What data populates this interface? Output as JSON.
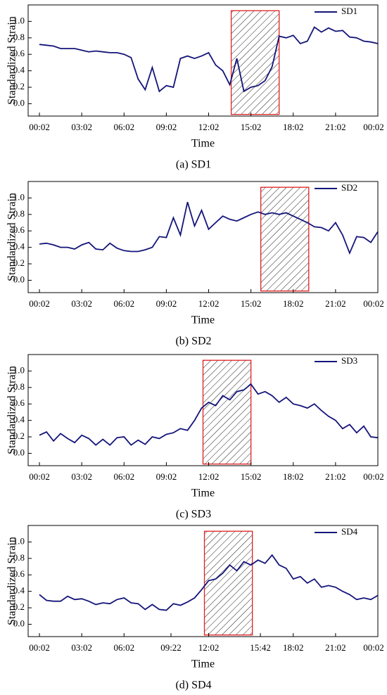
{
  "chart_data": [
    {
      "type": "line",
      "xlabel": "Time",
      "ylabel": "Standardized Strain",
      "caption": "(a) SD1",
      "legend": "upper right",
      "xlim": [
        -0.8,
        24
      ],
      "ylim": [
        -0.15,
        1.2
      ],
      "xticks": [
        {
          "value": 0,
          "label": "00:02"
        },
        {
          "value": 3,
          "label": "03:02"
        },
        {
          "value": 6,
          "label": "06:02"
        },
        {
          "value": 9,
          "label": "09:02"
        },
        {
          "value": 12,
          "label": "12:02"
        },
        {
          "value": 15,
          "label": "15:02"
        },
        {
          "value": 18,
          "label": "18:02"
        },
        {
          "value": 21,
          "label": "21:02"
        },
        {
          "value": 24,
          "label": "00:02"
        }
      ],
      "yticks": [
        {
          "value": 0,
          "label": "0.0"
        },
        0.2,
        0.4,
        0.6,
        0.8,
        {
          "value": 1,
          "label": "1.0"
        }
      ],
      "highlight": {
        "x": [
          13.6,
          17.0
        ],
        "y": [
          -0.13,
          1.13
        ],
        "color": "#e02020"
      },
      "x": [
        0,
        0.5,
        1,
        1.5,
        2,
        2.5,
        3,
        3.5,
        4,
        4.5,
        5,
        5.5,
        6,
        6.5,
        7,
        7.5,
        8,
        8.5,
        9,
        9.5,
        10,
        10.5,
        11,
        11.5,
        12,
        12.5,
        13,
        13.5,
        14,
        14.5,
        15,
        15.5,
        16,
        16.5,
        17,
        17.5,
        18,
        18.5,
        19,
        19.5,
        20,
        20.5,
        21,
        21.5,
        22,
        22.5,
        23,
        23.5,
        24
      ],
      "series": [
        {
          "name": "SD1",
          "color": "#14147a",
          "values": [
            0.72,
            0.71,
            0.7,
            0.67,
            0.67,
            0.67,
            0.65,
            0.63,
            0.64,
            0.63,
            0.62,
            0.62,
            0.6,
            0.56,
            0.3,
            0.17,
            0.44,
            0.15,
            0.22,
            0.2,
            0.55,
            0.58,
            0.55,
            0.58,
            0.62,
            0.47,
            0.4,
            0.23,
            0.55,
            0.15,
            0.2,
            0.22,
            0.28,
            0.45,
            0.82,
            0.8,
            0.83,
            0.73,
            0.76,
            0.93,
            0.87,
            0.92,
            0.88,
            0.89,
            0.81,
            0.8,
            0.76,
            0.75,
            0.73
          ]
        }
      ]
    },
    {
      "type": "line",
      "xlabel": "Time",
      "ylabel": "Standardized Strain",
      "caption": "(b) SD2",
      "legend": "upper right",
      "xlim": [
        -0.8,
        24
      ],
      "ylim": [
        -0.15,
        1.2
      ],
      "xticks": [
        {
          "value": 0,
          "label": "00:02"
        },
        {
          "value": 3,
          "label": "03:02"
        },
        {
          "value": 6,
          "label": "06:02"
        },
        {
          "value": 9,
          "label": "09:02"
        },
        {
          "value": 12,
          "label": "12:02"
        },
        {
          "value": 15,
          "label": "15:02"
        },
        {
          "value": 18,
          "label": "18:02"
        },
        {
          "value": 21,
          "label": "21:02"
        },
        {
          "value": 24,
          "label": "00:02"
        }
      ],
      "yticks": [
        {
          "value": 0,
          "label": "0.0"
        },
        0.2,
        0.4,
        0.6,
        0.8,
        {
          "value": 1,
          "label": "1.0"
        }
      ],
      "highlight": {
        "x": [
          15.7,
          19.1
        ],
        "y": [
          -0.13,
          1.13
        ],
        "color": "#e02020"
      },
      "x": [
        0,
        0.5,
        1,
        1.5,
        2,
        2.5,
        3,
        3.5,
        4,
        4.5,
        5,
        5.5,
        6,
        6.5,
        7,
        7.5,
        8,
        8.5,
        9,
        9.5,
        10,
        10.5,
        11,
        11.5,
        12,
        12.5,
        13,
        13.5,
        14,
        14.5,
        15,
        15.5,
        16,
        16.5,
        17,
        17.5,
        18,
        18.5,
        19,
        19.5,
        20,
        20.5,
        21,
        21.5,
        22,
        22.5,
        23,
        23.5,
        24
      ],
      "series": [
        {
          "name": "SD2",
          "color": "#14147a",
          "values": [
            0.44,
            0.45,
            0.43,
            0.4,
            0.4,
            0.38,
            0.43,
            0.46,
            0.38,
            0.37,
            0.45,
            0.39,
            0.36,
            0.35,
            0.35,
            0.37,
            0.4,
            0.53,
            0.52,
            0.76,
            0.55,
            0.95,
            0.66,
            0.85,
            0.62,
            0.7,
            0.78,
            0.74,
            0.72,
            0.76,
            0.8,
            0.83,
            0.8,
            0.82,
            0.8,
            0.82,
            0.78,
            0.74,
            0.7,
            0.65,
            0.64,
            0.6,
            0.7,
            0.55,
            0.33,
            0.53,
            0.52,
            0.46,
            0.59
          ]
        }
      ]
    },
    {
      "type": "line",
      "xlabel": "Time",
      "ylabel": "Standardized Strain",
      "caption": "(c) SD3",
      "legend": "upper right",
      "xlim": [
        -0.8,
        24
      ],
      "ylim": [
        -0.15,
        1.2
      ],
      "xticks": [
        {
          "value": 0,
          "label": "00:02"
        },
        {
          "value": 3,
          "label": "03:02"
        },
        {
          "value": 6,
          "label": "06:02"
        },
        {
          "value": 9,
          "label": "09:02"
        },
        {
          "value": 12,
          "label": "12:02"
        },
        {
          "value": 15,
          "label": "15:02"
        },
        {
          "value": 18,
          "label": "18:02"
        },
        {
          "value": 21,
          "label": "21:02"
        },
        {
          "value": 24,
          "label": "00:02"
        }
      ],
      "yticks": [
        {
          "value": 0,
          "label": "0.0"
        },
        0.2,
        0.4,
        0.6,
        0.8,
        {
          "value": 1,
          "label": "1.0"
        }
      ],
      "highlight": {
        "x": [
          11.6,
          15.0
        ],
        "y": [
          -0.13,
          1.13
        ],
        "color": "#e02020"
      },
      "x": [
        0,
        0.5,
        1,
        1.5,
        2,
        2.5,
        3,
        3.5,
        4,
        4.5,
        5,
        5.5,
        6,
        6.5,
        7,
        7.5,
        8,
        8.5,
        9,
        9.5,
        10,
        10.5,
        11,
        11.5,
        12,
        12.5,
        13,
        13.5,
        14,
        14.5,
        15,
        15.5,
        16,
        16.5,
        17,
        17.5,
        18,
        18.5,
        19,
        19.5,
        20,
        20.5,
        21,
        21.5,
        22,
        22.5,
        23,
        23.5,
        24
      ],
      "series": [
        {
          "name": "SD3",
          "color": "#14147a",
          "values": [
            0.22,
            0.26,
            0.15,
            0.24,
            0.18,
            0.13,
            0.22,
            0.18,
            0.1,
            0.17,
            0.1,
            0.19,
            0.2,
            0.1,
            0.16,
            0.11,
            0.2,
            0.18,
            0.23,
            0.25,
            0.3,
            0.28,
            0.4,
            0.55,
            0.62,
            0.58,
            0.7,
            0.65,
            0.75,
            0.77,
            0.84,
            0.72,
            0.75,
            0.7,
            0.62,
            0.68,
            0.6,
            0.58,
            0.55,
            0.6,
            0.52,
            0.45,
            0.4,
            0.3,
            0.35,
            0.25,
            0.33,
            0.2,
            0.19
          ]
        }
      ]
    },
    {
      "type": "line",
      "xlabel": "Time",
      "ylabel": "Standardized Strain",
      "caption": "(d) SD4",
      "legend": "upper right",
      "xlim": [
        -0.8,
        24
      ],
      "ylim": [
        -0.15,
        1.2
      ],
      "xticks": [
        {
          "value": 0,
          "label": "00:02"
        },
        {
          "value": 3,
          "label": "03:02"
        },
        {
          "value": 6,
          "label": "06:02"
        },
        {
          "value": 9.33,
          "label": "09:22"
        },
        {
          "value": 12,
          "label": "12:02"
        },
        {
          "value": 15.67,
          "label": "15:42"
        },
        {
          "value": 18,
          "label": "18:02"
        },
        {
          "value": 21,
          "label": "21:02"
        },
        {
          "value": 24,
          "label": "00:02"
        }
      ],
      "yticks": [
        {
          "value": 0,
          "label": "0.0"
        },
        0.2,
        0.4,
        0.6,
        0.8,
        {
          "value": 1,
          "label": "1.0"
        }
      ],
      "highlight": {
        "x": [
          11.7,
          15.1
        ],
        "y": [
          -0.13,
          1.13
        ],
        "color": "#e02020"
      },
      "x": [
        0,
        0.5,
        1,
        1.5,
        2,
        2.5,
        3,
        3.5,
        4,
        4.5,
        5,
        5.5,
        6,
        6.5,
        7,
        7.5,
        8,
        8.5,
        9,
        9.5,
        10,
        10.5,
        11,
        11.5,
        12,
        12.5,
        13,
        13.5,
        14,
        14.5,
        15,
        15.5,
        16,
        16.5,
        17,
        17.5,
        18,
        18.5,
        19,
        19.5,
        20,
        20.5,
        21,
        21.5,
        22,
        22.5,
        23,
        23.5,
        24
      ],
      "series": [
        {
          "name": "SD4",
          "color": "#14147a",
          "values": [
            0.36,
            0.29,
            0.28,
            0.28,
            0.34,
            0.3,
            0.31,
            0.28,
            0.24,
            0.26,
            0.25,
            0.3,
            0.32,
            0.26,
            0.25,
            0.18,
            0.24,
            0.18,
            0.17,
            0.25,
            0.23,
            0.27,
            0.32,
            0.42,
            0.53,
            0.55,
            0.62,
            0.72,
            0.65,
            0.76,
            0.72,
            0.78,
            0.74,
            0.84,
            0.72,
            0.68,
            0.55,
            0.58,
            0.5,
            0.55,
            0.45,
            0.47,
            0.45,
            0.4,
            0.36,
            0.3,
            0.32,
            0.3,
            0.35
          ]
        }
      ]
    }
  ]
}
